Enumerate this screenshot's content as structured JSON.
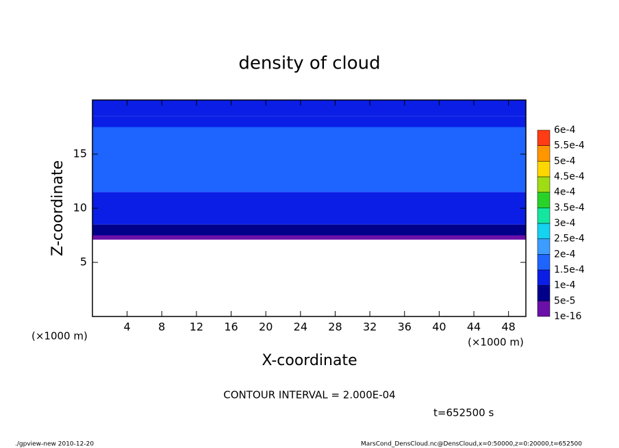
{
  "chart_data": {
    "type": "contour",
    "title": "density of cloud",
    "xlabel": "X-coordinate",
    "ylabel": "Z-coordinate",
    "x_unit": "(×1000 m)",
    "xlim": [
      0,
      50
    ],
    "xticks": [
      4,
      8,
      12,
      16,
      20,
      24,
      28,
      32,
      36,
      40,
      44,
      48
    ],
    "ylim": [
      0,
      20
    ],
    "yticks": [
      5,
      10,
      15
    ],
    "ybins": [
      7.1,
      7.5,
      8.5,
      10,
      11.5,
      17.5,
      18.5,
      20
    ],
    "values": [
      2e-05,
      7e-05,
      0.00012,
      0.00014,
      0.00017,
      0.00014,
      0.00012
    ],
    "levels": [
      {
        "value": 1e-16,
        "label": "1e-16"
      },
      {
        "value": 5e-05,
        "label": "5e-5"
      },
      {
        "value": 0.0001,
        "label": "1e-4"
      },
      {
        "value": 0.00015,
        "label": "1.5e-4"
      },
      {
        "value": 0.0002,
        "label": "2e-4"
      },
      {
        "value": 0.00025,
        "label": "2.5e-4"
      },
      {
        "value": 0.0003,
        "label": "3e-4"
      },
      {
        "value": 0.00035,
        "label": "3.5e-4"
      },
      {
        "value": 0.0004,
        "label": "4e-4"
      },
      {
        "value": 0.00045,
        "label": "4.5e-4"
      },
      {
        "value": 0.0005,
        "label": "5e-4"
      },
      {
        "value": 0.00055,
        "label": "5.5e-4"
      },
      {
        "value": 0.0006,
        "label": "6e-4"
      }
    ],
    "colors": [
      "#6a0fa8",
      "#00008b",
      "#0a1ee6",
      "#1e64ff",
      "#3c9cff",
      "#14d2f0",
      "#14e6a0",
      "#28d228",
      "#a0dc14",
      "#ffd700",
      "#ff9600",
      "#ff3c14",
      "#ff9696"
    ],
    "contour_interval": "CONTOUR INTERVAL = 2.000E-04",
    "time": "t=652500 s",
    "footer_left": "./gpview-new   2010-12-20",
    "footer_right": "MarsCond_DensCloud.nc@DensCloud,x=0:50000,z=0:20000,t=652500"
  }
}
